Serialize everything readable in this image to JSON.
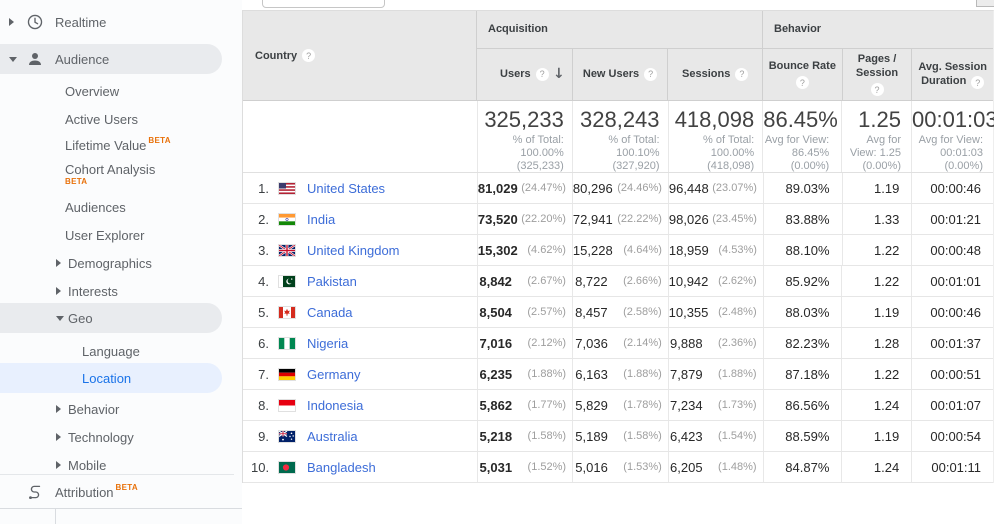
{
  "sidebar": {
    "beta_label": "BETA",
    "items": [
      {
        "label": "Realtime",
        "level": 0,
        "icon": "clock",
        "arrow": "right"
      },
      {
        "label": "Audience",
        "level": 0,
        "icon": "person",
        "arrow": "down",
        "pill": "gray"
      },
      {
        "label": "Overview",
        "level": 1
      },
      {
        "label": "Active Users",
        "level": 1
      },
      {
        "label": "Lifetime Value",
        "level": 1,
        "beta": "sup"
      },
      {
        "label": "Cohort Analysis",
        "level": 1,
        "beta": "below"
      },
      {
        "label": "Audiences",
        "level": 1
      },
      {
        "label": "User Explorer",
        "level": 1
      },
      {
        "label": "Demographics",
        "level": 1,
        "arrow": "right"
      },
      {
        "label": "Interests",
        "level": 1,
        "arrow": "right"
      },
      {
        "label": "Geo",
        "level": 1,
        "arrow": "down",
        "pill": "gray"
      },
      {
        "label": "Language",
        "level": 2
      },
      {
        "label": "Location",
        "level": 2,
        "pill": "blue",
        "selected": true
      },
      {
        "label": "Behavior",
        "level": 1,
        "arrow": "right"
      },
      {
        "label": "Technology",
        "level": 1,
        "arrow": "right"
      },
      {
        "label": "Mobile",
        "level": 1,
        "arrow": "right"
      },
      {
        "label": "Attribution",
        "level": 0,
        "icon": "attribution",
        "beta": "sup"
      }
    ]
  },
  "icons": {
    "help": "?",
    "sort_desc": "↓"
  },
  "colors": {
    "accent_blue": "#1a73e8",
    "beta_orange": "#e8710a",
    "selected_pill": "#e8f0fe"
  },
  "table": {
    "country_header": "Country",
    "groups": {
      "acquisition": "Acquisition",
      "behavior": "Behavior"
    },
    "columns": {
      "users": "Users",
      "new_users": "New Users",
      "sessions": "Sessions",
      "bounce": "Bounce Rate",
      "pages": "Pages / Session",
      "avg": "Avg. Session Duration"
    },
    "totals": {
      "users": {
        "value": "325,233",
        "sub": "% of Total:\n100.00%\n(325,233)"
      },
      "new_users": {
        "value": "328,243",
        "sub": "% of Total:\n100.10%\n(327,920)"
      },
      "sessions": {
        "value": "418,098",
        "sub": "% of Total:\n100.00%\n(418,098)"
      },
      "bounce": {
        "value": "86.45%",
        "sub": "Avg for View:\n86.45%\n(0.00%)"
      },
      "pages": {
        "value": "1.25",
        "sub": "Avg for\nView: 1.25\n(0.00%)"
      },
      "avg": {
        "value": "00:01:03",
        "sub": "Avg for View:\n00:01:03\n(0.00%)"
      }
    },
    "rows": [
      {
        "rank": "1.",
        "flag": "us",
        "country": "United States",
        "users": "81,029",
        "users_pct": "(24.47%)",
        "new_users": "80,296",
        "new_users_pct": "(24.46%)",
        "sessions": "96,448",
        "sessions_pct": "(23.07%)",
        "bounce": "89.03%",
        "pages": "1.19",
        "duration": "00:00:46"
      },
      {
        "rank": "2.",
        "flag": "in",
        "country": "India",
        "users": "73,520",
        "users_pct": "(22.20%)",
        "new_users": "72,941",
        "new_users_pct": "(22.22%)",
        "sessions": "98,026",
        "sessions_pct": "(23.45%)",
        "bounce": "83.88%",
        "pages": "1.33",
        "duration": "00:01:21"
      },
      {
        "rank": "3.",
        "flag": "gb",
        "country": "United Kingdom",
        "users": "15,302",
        "users_pct": "(4.62%)",
        "new_users": "15,228",
        "new_users_pct": "(4.64%)",
        "sessions": "18,959",
        "sessions_pct": "(4.53%)",
        "bounce": "88.10%",
        "pages": "1.22",
        "duration": "00:00:48"
      },
      {
        "rank": "4.",
        "flag": "pk",
        "country": "Pakistan",
        "users": "8,842",
        "users_pct": "(2.67%)",
        "new_users": "8,722",
        "new_users_pct": "(2.66%)",
        "sessions": "10,942",
        "sessions_pct": "(2.62%)",
        "bounce": "85.92%",
        "pages": "1.22",
        "duration": "00:01:01"
      },
      {
        "rank": "5.",
        "flag": "ca",
        "country": "Canada",
        "users": "8,504",
        "users_pct": "(2.57%)",
        "new_users": "8,457",
        "new_users_pct": "(2.58%)",
        "sessions": "10,355",
        "sessions_pct": "(2.48%)",
        "bounce": "88.03%",
        "pages": "1.19",
        "duration": "00:00:46"
      },
      {
        "rank": "6.",
        "flag": "ng",
        "country": "Nigeria",
        "users": "7,016",
        "users_pct": "(2.12%)",
        "new_users": "7,036",
        "new_users_pct": "(2.14%)",
        "sessions": "9,888",
        "sessions_pct": "(2.36%)",
        "bounce": "82.23%",
        "pages": "1.28",
        "duration": "00:01:37"
      },
      {
        "rank": "7.",
        "flag": "de",
        "country": "Germany",
        "users": "6,235",
        "users_pct": "(1.88%)",
        "new_users": "6,163",
        "new_users_pct": "(1.88%)",
        "sessions": "7,879",
        "sessions_pct": "(1.88%)",
        "bounce": "87.18%",
        "pages": "1.22",
        "duration": "00:00:51"
      },
      {
        "rank": "8.",
        "flag": "id",
        "country": "Indonesia",
        "users": "5,862",
        "users_pct": "(1.77%)",
        "new_users": "5,829",
        "new_users_pct": "(1.78%)",
        "sessions": "7,234",
        "sessions_pct": "(1.73%)",
        "bounce": "86.56%",
        "pages": "1.24",
        "duration": "00:01:07"
      },
      {
        "rank": "9.",
        "flag": "au",
        "country": "Australia",
        "users": "5,218",
        "users_pct": "(1.58%)",
        "new_users": "5,189",
        "new_users_pct": "(1.58%)",
        "sessions": "6,423",
        "sessions_pct": "(1.54%)",
        "bounce": "88.59%",
        "pages": "1.19",
        "duration": "00:00:54"
      },
      {
        "rank": "10.",
        "flag": "bd",
        "country": "Bangladesh",
        "users": "5,031",
        "users_pct": "(1.52%)",
        "new_users": "5,016",
        "new_users_pct": "(1.53%)",
        "sessions": "6,205",
        "sessions_pct": "(1.48%)",
        "bounce": "84.87%",
        "pages": "1.24",
        "duration": "00:01:11"
      }
    ]
  }
}
